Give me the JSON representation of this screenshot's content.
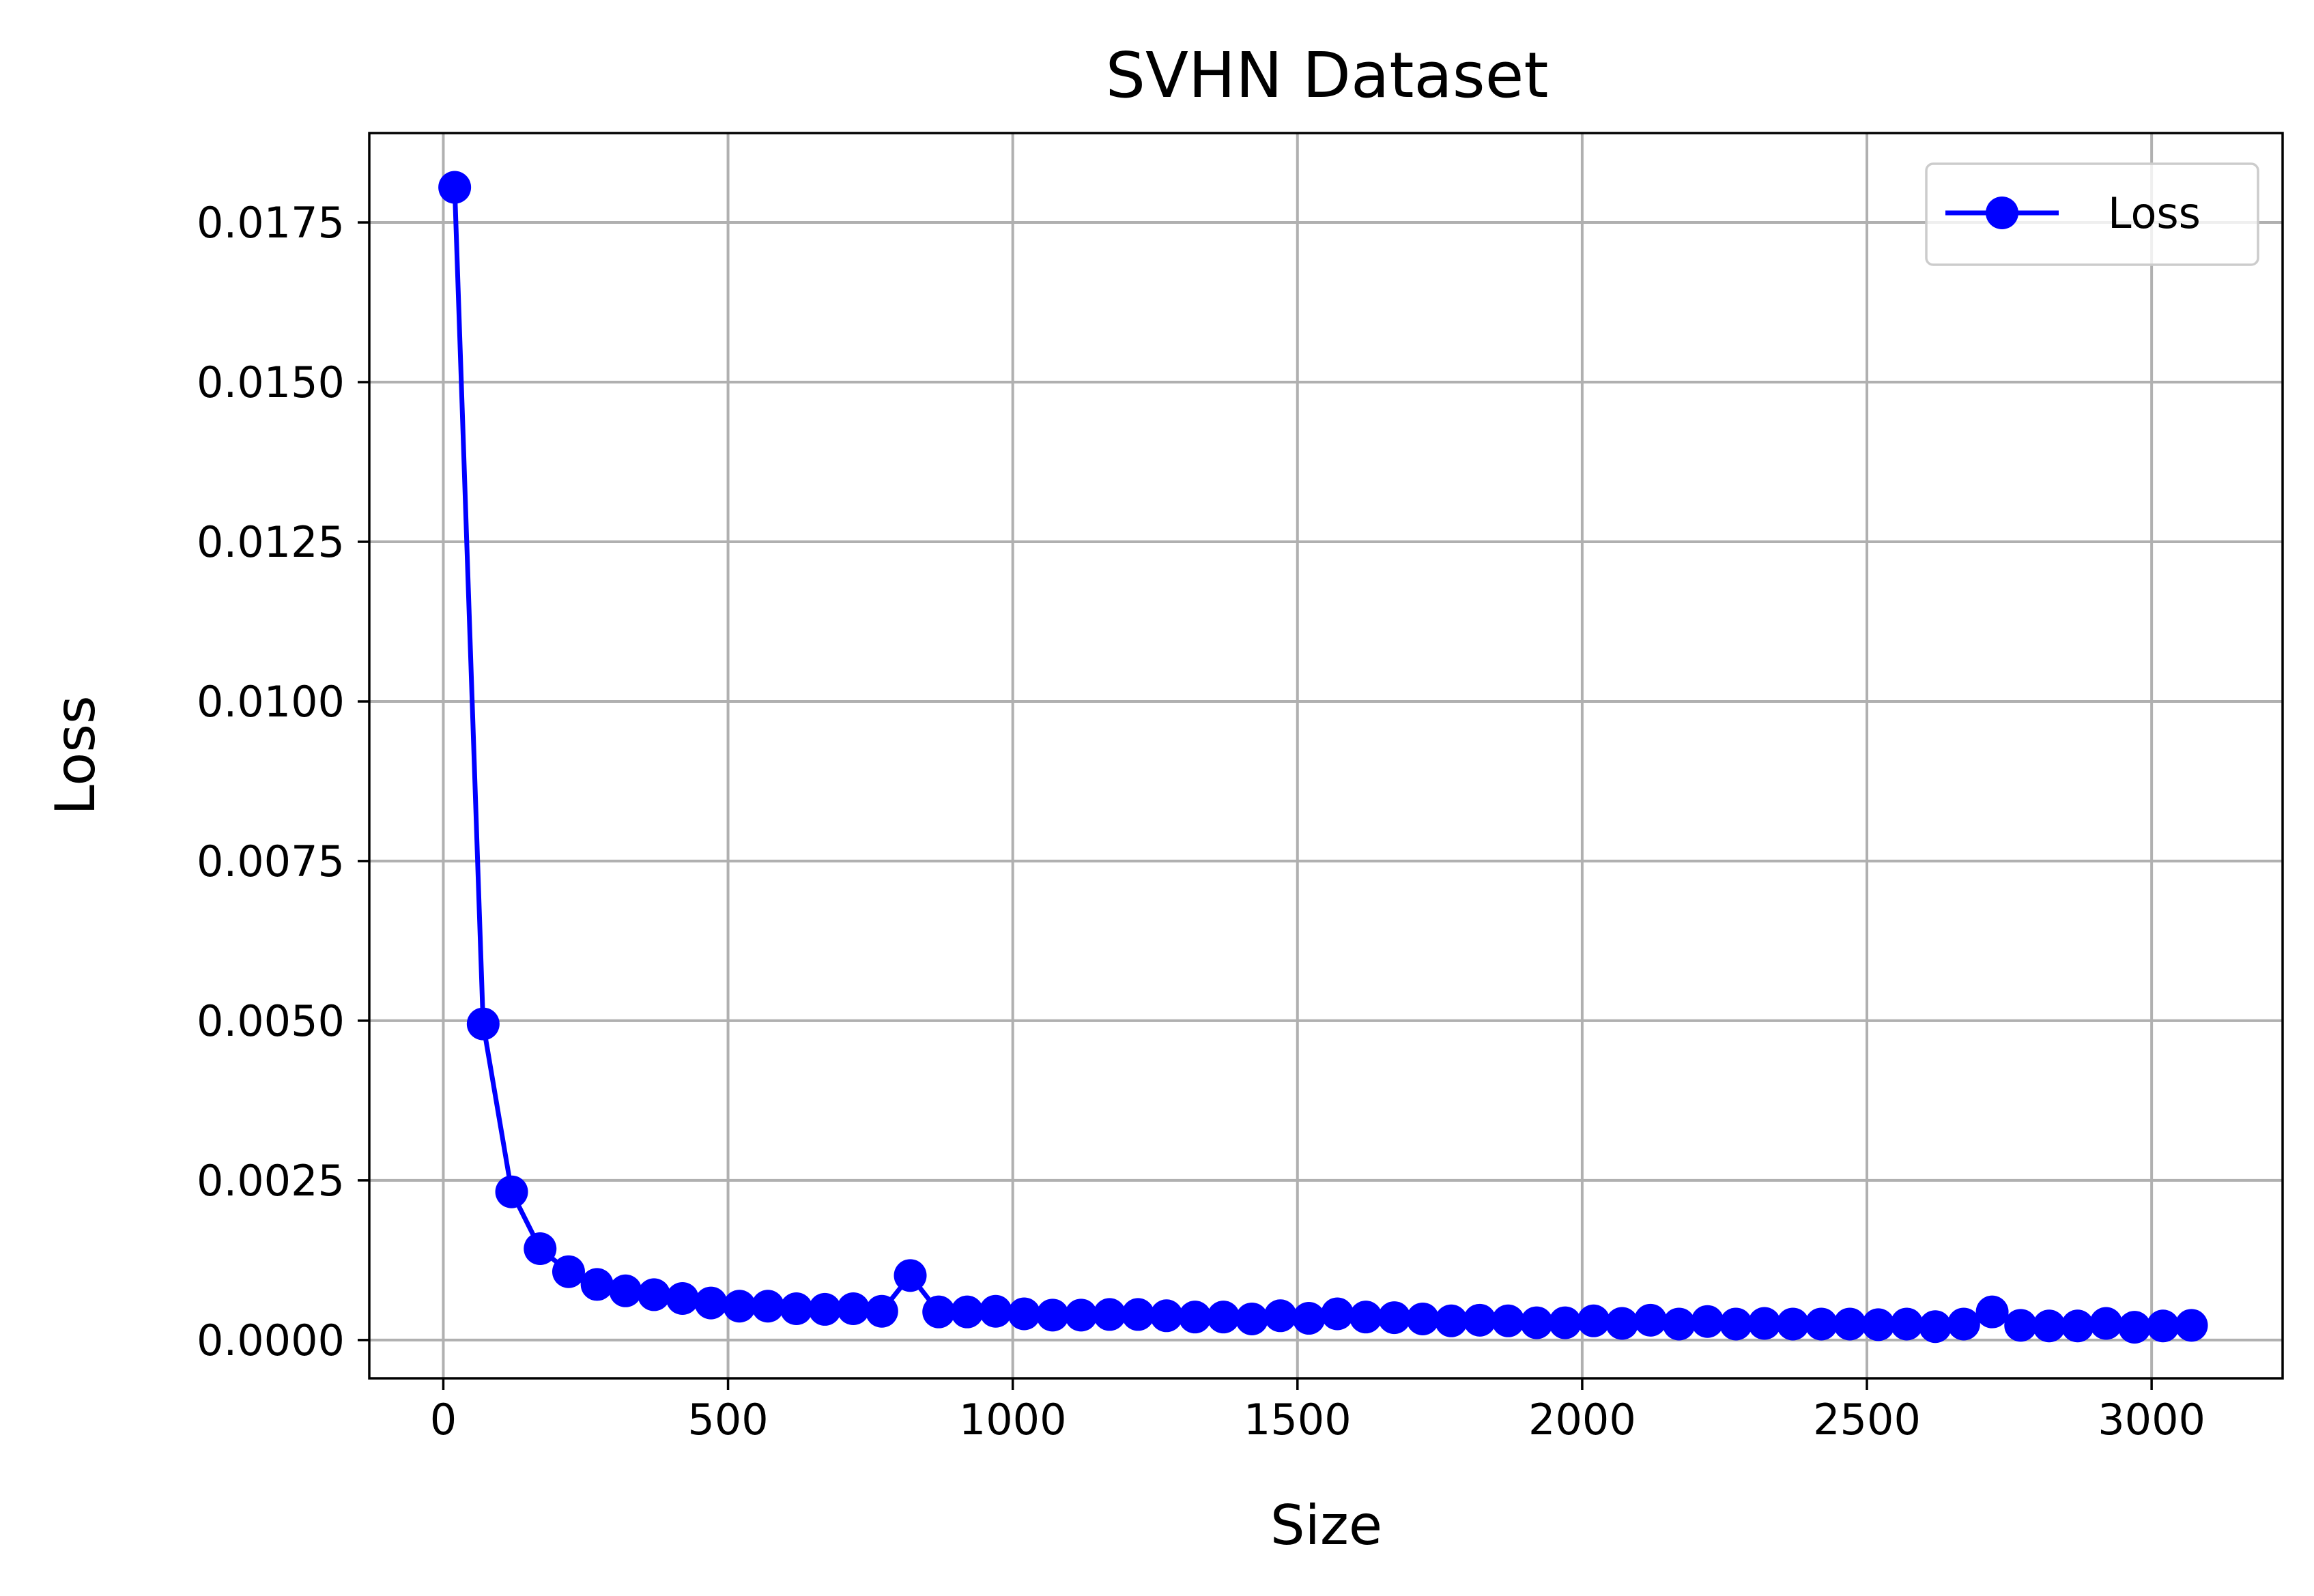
{
  "chart_data": {
    "type": "line",
    "title": "SVHN Dataset",
    "xlabel": "Size",
    "ylabel": "Loss",
    "xlim": [
      -130,
      3230
    ],
    "ylim": [
      -0.0006,
      0.0189
    ],
    "xticks": [
      0,
      500,
      1000,
      1500,
      2000,
      2500,
      3000
    ],
    "yticks": [
      0.0,
      0.0025,
      0.005,
      0.0075,
      0.01,
      0.0125,
      0.015,
      0.0175
    ],
    "xtick_labels": [
      "0",
      "500",
      "1000",
      "1500",
      "2000",
      "2500",
      "3000"
    ],
    "ytick_labels": [
      "0.0000",
      "0.0025",
      "0.0050",
      "0.0075",
      "0.0100",
      "0.0125",
      "0.0150",
      "0.0175"
    ],
    "grid": true,
    "legend_position": "top-right",
    "colors": {
      "series": "#0000ff",
      "grid": "#b0b0b0",
      "frame": "#000000"
    },
    "series": [
      {
        "name": "Loss",
        "marker": "circle",
        "x": [
          20,
          70,
          120,
          170,
          220,
          270,
          320,
          370,
          420,
          470,
          520,
          570,
          620,
          670,
          720,
          770,
          820,
          870,
          920,
          970,
          1020,
          1070,
          1120,
          1170,
          1220,
          1270,
          1320,
          1370,
          1420,
          1470,
          1520,
          1570,
          1620,
          1670,
          1720,
          1770,
          1820,
          1870,
          1920,
          1970,
          2020,
          2070,
          2120,
          2170,
          2220,
          2270,
          2320,
          2370,
          2420,
          2470,
          2520,
          2570,
          2620,
          2670,
          2720,
          2770,
          2820,
          2870,
          2920,
          2970,
          3020,
          3070
        ],
        "y": [
          0.01805,
          0.00495,
          0.00232,
          0.00143,
          0.00107,
          0.00087,
          0.00077,
          0.00071,
          0.00065,
          0.00058,
          0.00053,
          0.00053,
          0.00049,
          0.00048,
          0.00049,
          0.00045,
          0.00101,
          0.00044,
          0.00044,
          0.00045,
          0.00041,
          0.00039,
          0.00039,
          0.0004,
          0.0004,
          0.00038,
          0.00036,
          0.00036,
          0.00033,
          0.00038,
          0.00034,
          0.00041,
          0.00036,
          0.00035,
          0.00033,
          0.0003,
          0.00031,
          0.0003,
          0.00027,
          0.00027,
          0.0003,
          0.00026,
          0.00031,
          0.00025,
          0.00029,
          0.00025,
          0.00026,
          0.00025,
          0.00025,
          0.00025,
          0.00024,
          0.00025,
          0.00021,
          0.00025,
          0.00044,
          0.00023,
          0.00022,
          0.00022,
          0.00026,
          0.0002,
          0.00022,
          0.00023
        ]
      }
    ]
  }
}
